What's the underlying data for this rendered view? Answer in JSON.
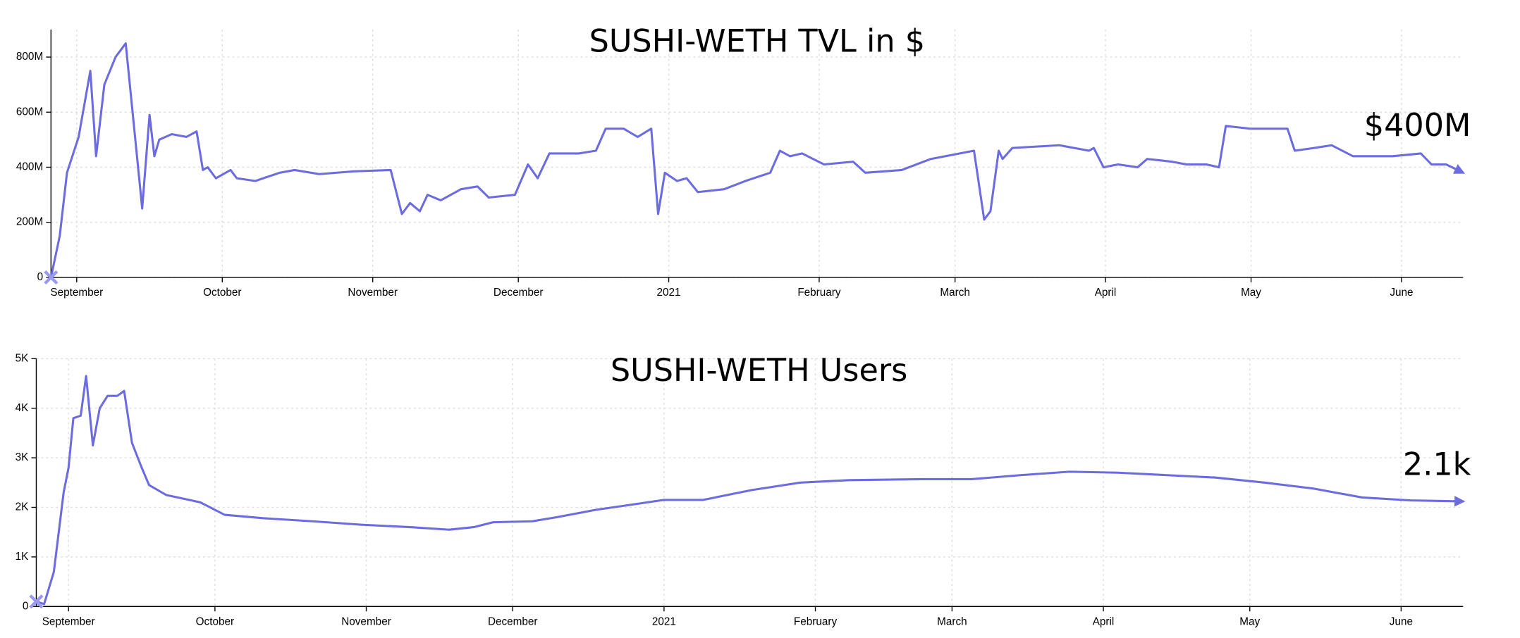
{
  "chart_data": [
    {
      "type": "line",
      "title": "SUSHI-WETH TVL in $",
      "annotation": "$400M",
      "x": [
        -5.3,
        -3.5,
        -2,
        0.4,
        2.8,
        4,
        5.7,
        8,
        10.1,
        13.5,
        15,
        16,
        17,
        19.6,
        22.6,
        24.7,
        26,
        27,
        28.7,
        31.7,
        33,
        36.8,
        41.8,
        44.9,
        50,
        57,
        64.7,
        67,
        68.7,
        70.7,
        72.3,
        75,
        79.2,
        82.6,
        84.9,
        90.3,
        93,
        95,
        97.4,
        103.5,
        107,
        109,
        112.7,
        115.6,
        118.4,
        119.8,
        121.2,
        123.7,
        125.7,
        128,
        133.4,
        137.8,
        142.9,
        144.9,
        147,
        149.5,
        154,
        160,
        162.5,
        170,
        176,
        182,
        184.9,
        187,
        188.3,
        190,
        190.8,
        192.8,
        202.5,
        208.6,
        209.6,
        211.6,
        214.6,
        218.6,
        220.6,
        225.7,
        228.7,
        232.8,
        235.4,
        236.8,
        241.8,
        249.5,
        251,
        255,
        258.6,
        263,
        271.2,
        277,
        279.2,
        282.2,
        285.7
      ],
      "series": [
        {
          "color": "#6c6ce0",
          "values": [
            0,
            150000000,
            380000000,
            510000000,
            750000000,
            440000000,
            700000000,
            800000000,
            850000000,
            250000000,
            590000000,
            440000000,
            500000000,
            520000000,
            510000000,
            530000000,
            390000000,
            400000000,
            360000000,
            390000000,
            360000000,
            350000000,
            380000000,
            390000000,
            375000000,
            385000000,
            390000000,
            230000000,
            270000000,
            240000000,
            300000000,
            280000000,
            320000000,
            330000000,
            290000000,
            300000000,
            410000000,
            360000000,
            450000000,
            450000000,
            460000000,
            540000000,
            540000000,
            510000000,
            540000000,
            230000000,
            380000000,
            350000000,
            360000000,
            310000000,
            320000000,
            350000000,
            380000000,
            460000000,
            440000000,
            450000000,
            410000000,
            420000000,
            380000000,
            390000000,
            430000000,
            450000000,
            460000000,
            210000000,
            240000000,
            460000000,
            430000000,
            470000000,
            480000000,
            460000000,
            470000000,
            400000000,
            410000000,
            400000000,
            430000000,
            420000000,
            410000000,
            410000000,
            400000000,
            550000000,
            540000000,
            540000000,
            460000000,
            470000000,
            480000000,
            440000000,
            440000000,
            450000000,
            410000000,
            410000000,
            380000000
          ]
        }
      ],
      "xlim": [
        -5.3,
        285.7
      ],
      "xticks": [
        {
          "value": 0,
          "label": "September"
        },
        {
          "value": 30,
          "label": "October"
        },
        {
          "value": 61,
          "label": "November"
        },
        {
          "value": 91,
          "label": "December"
        },
        {
          "value": 122,
          "label": "2021"
        },
        {
          "value": 153,
          "label": "February"
        },
        {
          "value": 181,
          "label": "March"
        },
        {
          "value": 212,
          "label": "April"
        },
        {
          "value": 242,
          "label": "May"
        },
        {
          "value": 273,
          "label": "June"
        }
      ],
      "ylim": [
        0,
        900000000
      ],
      "yticks": [
        0,
        {
          "value": 200000000,
          "label": "200M"
        },
        {
          "value": 400000000,
          "label": "400M"
        },
        {
          "value": 600000000,
          "label": "600M"
        },
        {
          "value": 800000000,
          "label": "800M"
        }
      ],
      "grid": true
    },
    {
      "type": "line",
      "title": "SUSHI-WETH Users",
      "annotation": "2.1k",
      "x": [
        -6.6,
        -5,
        -3,
        -1,
        0,
        1,
        2.5,
        3.6,
        5,
        6.4,
        8,
        10,
        11.4,
        13,
        15,
        16.5,
        20,
        27,
        32,
        40,
        50,
        60,
        70,
        78,
        83,
        87,
        95,
        100,
        108,
        115,
        122,
        130,
        140,
        150,
        160,
        175,
        185,
        195,
        205,
        215,
        225,
        235,
        245,
        255,
        265,
        275,
        285.7
      ],
      "series": [
        {
          "color": "#6c6ce0",
          "values": [
            100,
            50,
            700,
            2300,
            2800,
            3800,
            3850,
            4650,
            3250,
            4000,
            4250,
            4250,
            4350,
            3300,
            2800,
            2450,
            2250,
            2100,
            1850,
            1780,
            1720,
            1650,
            1600,
            1550,
            1600,
            1700,
            1720,
            1800,
            1950,
            2050,
            2150,
            2150,
            2350,
            2500,
            2550,
            2570,
            2570,
            2650,
            2720,
            2700,
            2650,
            2600,
            2500,
            2380,
            2200,
            2140,
            2120
          ]
        }
      ],
      "xlim": [
        -6.6,
        285.7
      ],
      "xticks": [
        {
          "value": 0,
          "label": "September"
        },
        {
          "value": 30,
          "label": "October"
        },
        {
          "value": 61,
          "label": "November"
        },
        {
          "value": 91,
          "label": "December"
        },
        {
          "value": 122,
          "label": "2021"
        },
        {
          "value": 153,
          "label": "February"
        },
        {
          "value": 181,
          "label": "March"
        },
        {
          "value": 212,
          "label": "April"
        },
        {
          "value": 242,
          "label": "May"
        },
        {
          "value": 273,
          "label": "June"
        }
      ],
      "ylim": [
        0,
        5000
      ],
      "yticks": [
        0,
        {
          "value": 1000,
          "label": "1K"
        },
        {
          "value": 2000,
          "label": "2K"
        },
        {
          "value": 3000,
          "label": "3K"
        },
        {
          "value": 4000,
          "label": "4K"
        },
        {
          "value": 5000,
          "label": "5K"
        }
      ],
      "grid": true
    }
  ]
}
